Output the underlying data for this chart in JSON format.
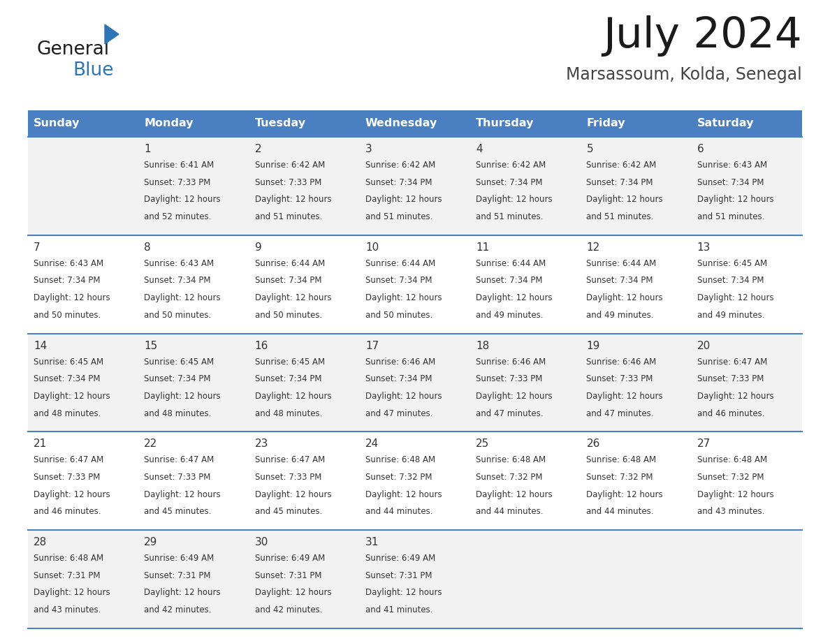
{
  "title": "July 2024",
  "subtitle": "Marsassoum, Kolda, Senegal",
  "days_of_week": [
    "Sunday",
    "Monday",
    "Tuesday",
    "Wednesday",
    "Thursday",
    "Friday",
    "Saturday"
  ],
  "header_bg": "#4a7fc1",
  "header_text_color": "#FFFFFF",
  "row_bg_odd": "#f2f2f2",
  "row_bg_even": "#ffffff",
  "cell_text_color": "#333333",
  "divider_color": "#4a7fc1",
  "calendar_data": [
    {
      "day": 1,
      "col": 1,
      "row": 0,
      "sunrise": "6:41 AM",
      "sunset": "7:33 PM",
      "minutes": "52"
    },
    {
      "day": 2,
      "col": 2,
      "row": 0,
      "sunrise": "6:42 AM",
      "sunset": "7:33 PM",
      "minutes": "51"
    },
    {
      "day": 3,
      "col": 3,
      "row": 0,
      "sunrise": "6:42 AM",
      "sunset": "7:34 PM",
      "minutes": "51"
    },
    {
      "day": 4,
      "col": 4,
      "row": 0,
      "sunrise": "6:42 AM",
      "sunset": "7:34 PM",
      "minutes": "51"
    },
    {
      "day": 5,
      "col": 5,
      "row": 0,
      "sunrise": "6:42 AM",
      "sunset": "7:34 PM",
      "minutes": "51"
    },
    {
      "day": 6,
      "col": 6,
      "row": 0,
      "sunrise": "6:43 AM",
      "sunset": "7:34 PM",
      "minutes": "51"
    },
    {
      "day": 7,
      "col": 0,
      "row": 1,
      "sunrise": "6:43 AM",
      "sunset": "7:34 PM",
      "minutes": "50"
    },
    {
      "day": 8,
      "col": 1,
      "row": 1,
      "sunrise": "6:43 AM",
      "sunset": "7:34 PM",
      "minutes": "50"
    },
    {
      "day": 9,
      "col": 2,
      "row": 1,
      "sunrise": "6:44 AM",
      "sunset": "7:34 PM",
      "minutes": "50"
    },
    {
      "day": 10,
      "col": 3,
      "row": 1,
      "sunrise": "6:44 AM",
      "sunset": "7:34 PM",
      "minutes": "50"
    },
    {
      "day": 11,
      "col": 4,
      "row": 1,
      "sunrise": "6:44 AM",
      "sunset": "7:34 PM",
      "minutes": "49"
    },
    {
      "day": 12,
      "col": 5,
      "row": 1,
      "sunrise": "6:44 AM",
      "sunset": "7:34 PM",
      "minutes": "49"
    },
    {
      "day": 13,
      "col": 6,
      "row": 1,
      "sunrise": "6:45 AM",
      "sunset": "7:34 PM",
      "minutes": "49"
    },
    {
      "day": 14,
      "col": 0,
      "row": 2,
      "sunrise": "6:45 AM",
      "sunset": "7:34 PM",
      "minutes": "48"
    },
    {
      "day": 15,
      "col": 1,
      "row": 2,
      "sunrise": "6:45 AM",
      "sunset": "7:34 PM",
      "minutes": "48"
    },
    {
      "day": 16,
      "col": 2,
      "row": 2,
      "sunrise": "6:45 AM",
      "sunset": "7:34 PM",
      "minutes": "48"
    },
    {
      "day": 17,
      "col": 3,
      "row": 2,
      "sunrise": "6:46 AM",
      "sunset": "7:34 PM",
      "minutes": "47"
    },
    {
      "day": 18,
      "col": 4,
      "row": 2,
      "sunrise": "6:46 AM",
      "sunset": "7:33 PM",
      "minutes": "47"
    },
    {
      "day": 19,
      "col": 5,
      "row": 2,
      "sunrise": "6:46 AM",
      "sunset": "7:33 PM",
      "minutes": "47"
    },
    {
      "day": 20,
      "col": 6,
      "row": 2,
      "sunrise": "6:47 AM",
      "sunset": "7:33 PM",
      "minutes": "46"
    },
    {
      "day": 21,
      "col": 0,
      "row": 3,
      "sunrise": "6:47 AM",
      "sunset": "7:33 PM",
      "minutes": "46"
    },
    {
      "day": 22,
      "col": 1,
      "row": 3,
      "sunrise": "6:47 AM",
      "sunset": "7:33 PM",
      "minutes": "45"
    },
    {
      "day": 23,
      "col": 2,
      "row": 3,
      "sunrise": "6:47 AM",
      "sunset": "7:33 PM",
      "minutes": "45"
    },
    {
      "day": 24,
      "col": 3,
      "row": 3,
      "sunrise": "6:48 AM",
      "sunset": "7:32 PM",
      "minutes": "44"
    },
    {
      "day": 25,
      "col": 4,
      "row": 3,
      "sunrise": "6:48 AM",
      "sunset": "7:32 PM",
      "minutes": "44"
    },
    {
      "day": 26,
      "col": 5,
      "row": 3,
      "sunrise": "6:48 AM",
      "sunset": "7:32 PM",
      "minutes": "44"
    },
    {
      "day": 27,
      "col": 6,
      "row": 3,
      "sunrise": "6:48 AM",
      "sunset": "7:32 PM",
      "minutes": "43"
    },
    {
      "day": 28,
      "col": 0,
      "row": 4,
      "sunrise": "6:48 AM",
      "sunset": "7:31 PM",
      "minutes": "43"
    },
    {
      "day": 29,
      "col": 1,
      "row": 4,
      "sunrise": "6:49 AM",
      "sunset": "7:31 PM",
      "minutes": "42"
    },
    {
      "day": 30,
      "col": 2,
      "row": 4,
      "sunrise": "6:49 AM",
      "sunset": "7:31 PM",
      "minutes": "42"
    },
    {
      "day": 31,
      "col": 3,
      "row": 4,
      "sunrise": "6:49 AM",
      "sunset": "7:31 PM",
      "minutes": "41"
    }
  ]
}
